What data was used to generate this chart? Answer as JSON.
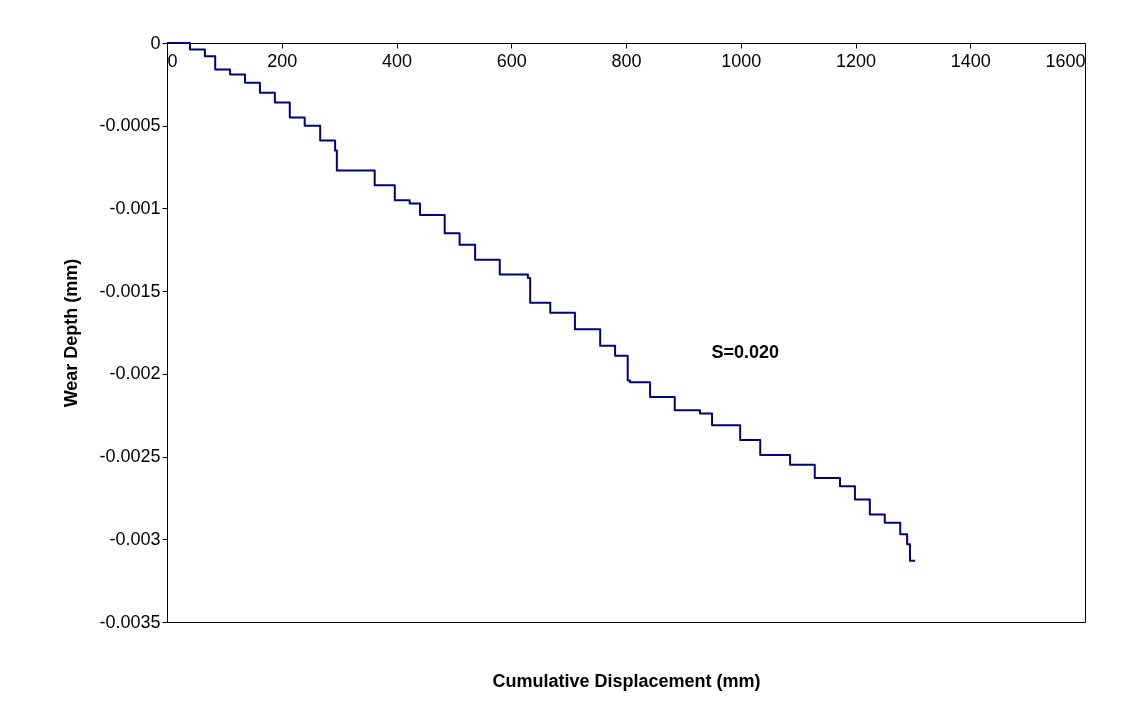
{
  "chart_data": {
    "type": "step",
    "xlabel": "Cumulative Displacement (mm)",
    "ylabel": "Wear Depth (mm)",
    "xlim": [
      0,
      1600
    ],
    "xticks": [
      0,
      200,
      400,
      600,
      800,
      1000,
      1200,
      1400,
      1600
    ],
    "ylim": [
      -0.0035,
      0
    ],
    "yticks": [
      -0.0035,
      -0.003,
      -0.0025,
      -0.002,
      -0.0015,
      -0.001,
      -0.0005,
      0
    ],
    "grid": false,
    "line_style": "solid",
    "marker": "none",
    "annotations": [
      "S=0.020"
    ],
    "series": [
      {
        "color": "#000080",
        "x": [
          0,
          5,
          40,
          66,
          84,
          110,
          136,
          162,
          188,
          214,
          240,
          267,
          293,
          296,
          336,
          362,
          397,
          423,
          441,
          484,
          510,
          537,
          580,
          629,
          633,
          668,
          711,
          755,
          781,
          803,
          807,
          842,
          885,
          929,
          950,
          999,
          1034,
          1086,
          1129,
          1173,
          1199,
          1225,
          1251,
          1278,
          1290,
          1295,
          1304
        ],
        "values": [
          0,
          0,
          -4e-05,
          -8e-05,
          -0.00016,
          -0.00019,
          -0.00024,
          -0.0003,
          -0.00036,
          -0.00045,
          -0.0005,
          -0.00059,
          -0.00065,
          -0.00077,
          -0.00077,
          -0.00086,
          -0.00095,
          -0.00097,
          -0.00104,
          -0.00115,
          -0.00122,
          -0.00131,
          -0.0014,
          -0.00142,
          -0.00157,
          -0.00163,
          -0.00173,
          -0.00183,
          -0.00189,
          -0.00204,
          -0.00205,
          -0.00214,
          -0.00222,
          -0.00224,
          -0.00231,
          -0.0024,
          -0.00249,
          -0.00255,
          -0.00263,
          -0.00268,
          -0.00276,
          -0.00285,
          -0.0029,
          -0.00297,
          -0.00303,
          -0.00313,
          -0.00313
        ]
      }
    ]
  }
}
